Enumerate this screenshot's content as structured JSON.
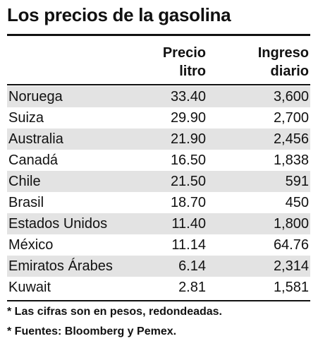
{
  "header": {
    "title": "Los precios de la gasolina"
  },
  "table": {
    "columns": [
      [],
      [
        "Precio",
        "litro"
      ],
      [
        "Ingreso",
        "diario"
      ]
    ],
    "rows": [
      [
        "Noruega",
        "33.40",
        "3,600"
      ],
      [
        "Suiza",
        "29.90",
        "2,700"
      ],
      [
        "Australia",
        "21.90",
        "2,456"
      ],
      [
        "Canadá",
        "16.50",
        "1,838"
      ],
      [
        "Chile",
        "21.50",
        "591"
      ],
      [
        "Brasil",
        "18.70",
        "450"
      ],
      [
        "Estados Unidos",
        "11.40",
        "1,800"
      ],
      [
        "México",
        "11.14",
        "64.76"
      ],
      [
        "Emiratos Árabes",
        "6.14",
        "2,314"
      ],
      [
        "Kuwait",
        "2.81",
        "1,581"
      ]
    ]
  },
  "footnotes": [
    "* Las cifras son en pesos, redondeadas.",
    "* Fuentes: Bloomberg y Pemex."
  ]
}
